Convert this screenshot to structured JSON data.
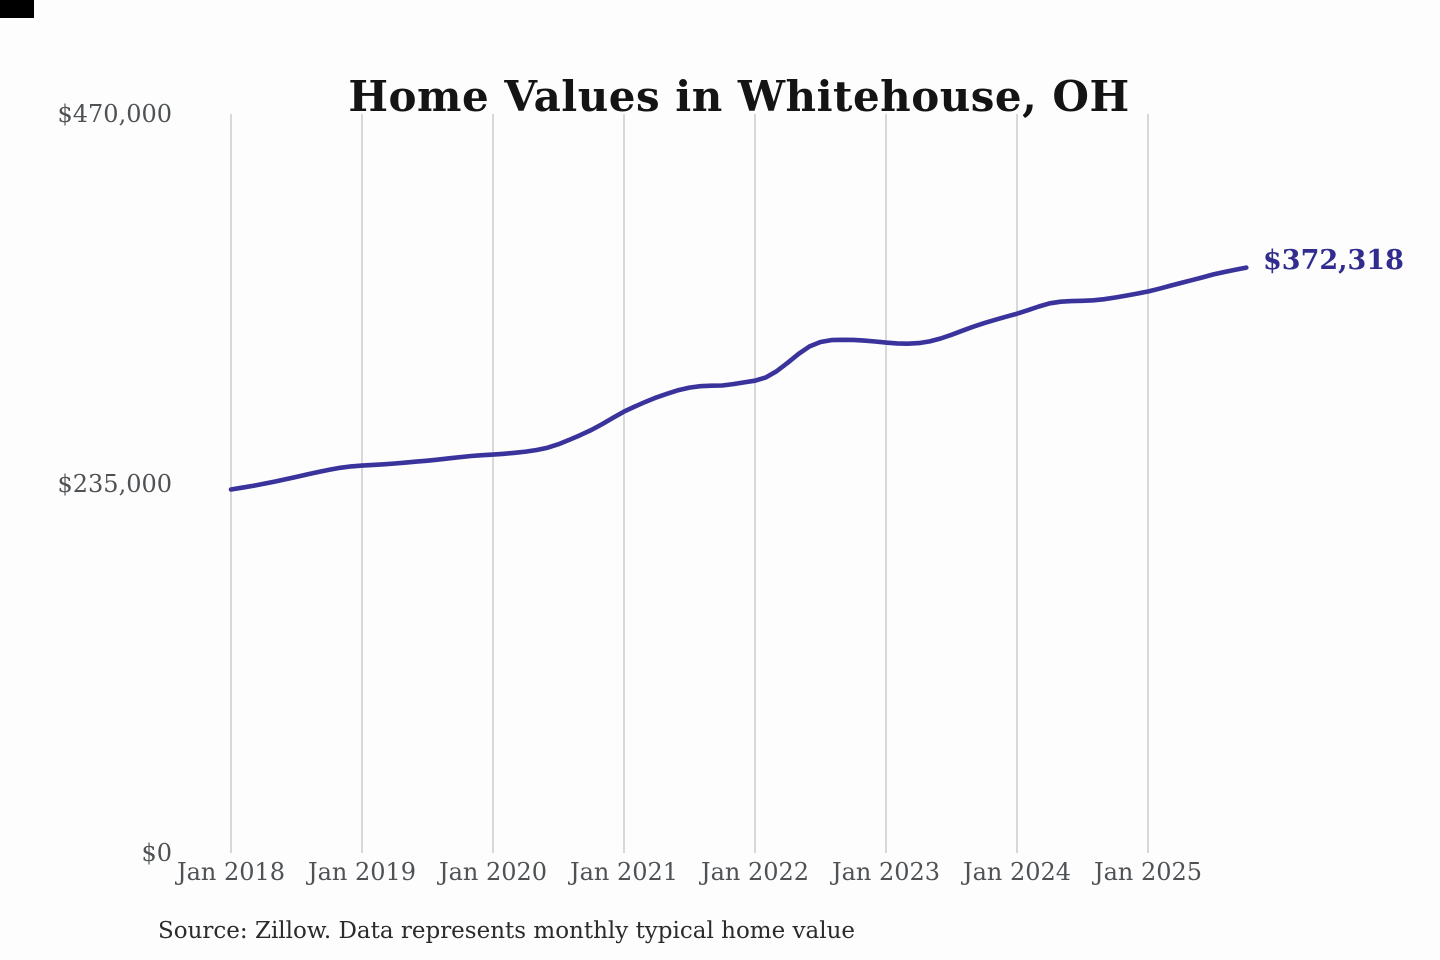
{
  "header": {
    "title": "Home Values in Whitehouse, OH"
  },
  "footer": {
    "source_note": "Source: Zillow. Data represents monthly typical home value"
  },
  "colors": {
    "line": "#3a339c",
    "end_label": "#312c8e",
    "grid": "#c9c9c9",
    "axis_text": "#4f5255",
    "title_text": "#141414",
    "background": "#fdfdfd"
  },
  "chart_data": {
    "type": "line",
    "title": "Home Values in Whitehouse, OH",
    "series_name": "Monthly typical home value",
    "xlabel": "",
    "ylabel": "",
    "ylim": [
      0,
      470000
    ],
    "grid": "vertical-only",
    "legend": "none",
    "end_label": "$372,318",
    "end_value": 372318,
    "y_ticks": [
      {
        "label": "$470,000",
        "value": 470000
      },
      {
        "label": "$235,000",
        "value": 235000
      },
      {
        "label": "$0",
        "value": 0
      }
    ],
    "x_ticks": [
      "Jan 2018",
      "Jan 2019",
      "Jan 2020",
      "Jan 2021",
      "Jan 2022",
      "Jan 2023",
      "Jan 2024",
      "Jan 2025"
    ],
    "x": [
      "2018-01",
      "2018-02",
      "2018-03",
      "2018-04",
      "2018-05",
      "2018-06",
      "2018-07",
      "2018-08",
      "2018-09",
      "2018-10",
      "2018-11",
      "2018-12",
      "2019-01",
      "2019-02",
      "2019-03",
      "2019-04",
      "2019-05",
      "2019-06",
      "2019-07",
      "2019-08",
      "2019-09",
      "2019-10",
      "2019-11",
      "2019-12",
      "2020-01",
      "2020-02",
      "2020-03",
      "2020-04",
      "2020-05",
      "2020-06",
      "2020-07",
      "2020-08",
      "2020-09",
      "2020-10",
      "2020-11",
      "2020-12",
      "2021-01",
      "2021-02",
      "2021-03",
      "2021-04",
      "2021-05",
      "2021-06",
      "2021-07",
      "2021-08",
      "2021-09",
      "2021-10",
      "2021-11",
      "2021-12",
      "2022-01",
      "2022-02",
      "2022-03",
      "2022-04",
      "2022-05",
      "2022-06",
      "2022-07",
      "2022-08",
      "2022-09",
      "2022-10",
      "2022-11",
      "2022-12",
      "2023-01",
      "2023-02",
      "2023-03",
      "2023-04",
      "2023-05",
      "2023-06",
      "2023-07",
      "2023-08",
      "2023-09",
      "2023-10",
      "2023-11",
      "2023-12",
      "2024-01",
      "2024-02",
      "2024-03",
      "2024-04",
      "2024-05",
      "2024-06",
      "2024-07",
      "2024-08",
      "2024-09",
      "2024-10",
      "2024-11",
      "2024-12",
      "2025-01",
      "2025-02",
      "2025-03",
      "2025-04",
      "2025-05",
      "2025-06",
      "2025-07",
      "2025-08",
      "2025-09",
      "2025-10"
    ],
    "values": [
      231200,
      232300,
      233500,
      234800,
      236200,
      237700,
      239200,
      240800,
      242300,
      243700,
      245000,
      245900,
      246400,
      246800,
      247200,
      247700,
      248300,
      248900,
      249500,
      250200,
      251000,
      251800,
      252500,
      253000,
      253400,
      253900,
      254500,
      255300,
      256300,
      257800,
      260000,
      262800,
      265800,
      269000,
      272800,
      276800,
      280700,
      284000,
      287000,
      289800,
      292200,
      294400,
      296000,
      296900,
      297200,
      297300,
      298200,
      299300,
      300400,
      302500,
      306500,
      311800,
      317500,
      322200,
      325000,
      326200,
      326400,
      326300,
      325900,
      325300,
      324600,
      324100,
      323900,
      324300,
      325400,
      327200,
      329600,
      332200,
      334700,
      337000,
      339100,
      341100,
      343000,
      345200,
      347600,
      349600,
      350600,
      351000,
      351200,
      351500,
      352200,
      353300,
      354500,
      355800,
      357100,
      358800,
      360700,
      362500,
      364300,
      366100,
      368000,
      369500,
      371000,
      372318
    ]
  }
}
